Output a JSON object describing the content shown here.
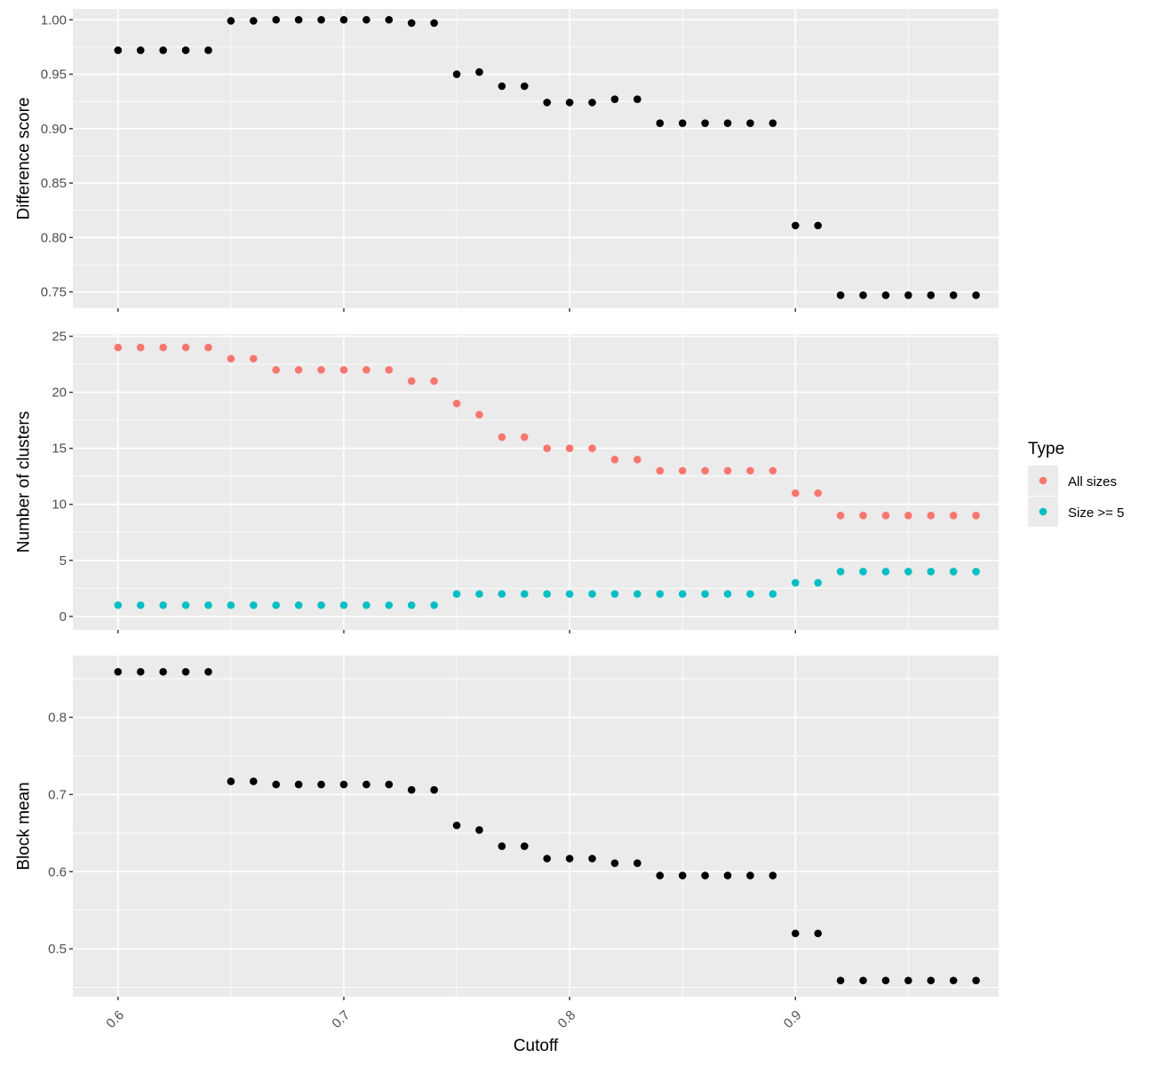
{
  "chart_data": {
    "type": "scatter",
    "x_axis": {
      "label": "Cutoff",
      "range": [
        0.58,
        0.99
      ],
      "ticks": [
        0.6,
        0.7,
        0.8,
        0.9
      ],
      "tick_labels": [
        "0.6",
        "0.7",
        "0.8",
        "0.9"
      ],
      "shared": true
    },
    "x": [
      0.6,
      0.61,
      0.62,
      0.63,
      0.64,
      0.65,
      0.66,
      0.67,
      0.68,
      0.69,
      0.7,
      0.71,
      0.72,
      0.73,
      0.74,
      0.75,
      0.76,
      0.77,
      0.78,
      0.79,
      0.8,
      0.81,
      0.82,
      0.83,
      0.84,
      0.85,
      0.86,
      0.87,
      0.88,
      0.89,
      0.9,
      0.91,
      0.92,
      0.93,
      0.94,
      0.95,
      0.96,
      0.97,
      0.98
    ],
    "grid": true,
    "panels": [
      {
        "ylabel": "Difference score",
        "ylim": [
          0.735,
          1.01
        ],
        "yticks": [
          0.75,
          0.8,
          0.85,
          0.9,
          0.95,
          1.0
        ],
        "ytick_labels": [
          "0.75",
          "0.80",
          "0.85",
          "0.90",
          "0.95",
          "1.00"
        ],
        "series": [
          {
            "color": "#000000",
            "values": [
              0.972,
              0.972,
              0.972,
              0.972,
              0.972,
              0.999,
              0.999,
              1.0,
              1.0,
              1.0,
              1.0,
              1.0,
              1.0,
              0.997,
              0.997,
              0.95,
              0.952,
              0.939,
              0.939,
              0.924,
              0.924,
              0.924,
              0.927,
              0.927,
              0.905,
              0.905,
              0.905,
              0.905,
              0.905,
              0.905,
              0.811,
              0.811,
              0.747,
              0.747,
              0.747,
              0.747,
              0.747,
              0.747,
              0.747
            ]
          }
        ]
      },
      {
        "ylabel": "Number of clusters",
        "ylim": [
          -1.2,
          25.2
        ],
        "yticks": [
          0,
          5,
          10,
          15,
          20,
          25
        ],
        "ytick_labels": [
          "0",
          "5",
          "10",
          "15",
          "20",
          "25"
        ],
        "series": [
          {
            "name": "All sizes",
            "color": "#F8766D",
            "values": [
              24,
              24,
              24,
              24,
              24,
              23,
              23,
              22,
              22,
              22,
              22,
              22,
              22,
              21,
              21,
              19,
              18,
              16,
              16,
              15,
              15,
              15,
              14,
              14,
              13,
              13,
              13,
              13,
              13,
              13,
              11,
              11,
              9,
              9,
              9,
              9,
              9,
              9,
              9
            ]
          },
          {
            "name": "Size >= 5",
            "color": "#00BFC4",
            "values": [
              1,
              1,
              1,
              1,
              1,
              1,
              1,
              1,
              1,
              1,
              1,
              1,
              1,
              1,
              1,
              2,
              2,
              2,
              2,
              2,
              2,
              2,
              2,
              2,
              2,
              2,
              2,
              2,
              2,
              2,
              3,
              3,
              4,
              4,
              4,
              4,
              4,
              4,
              4
            ]
          }
        ]
      },
      {
        "ylabel": "Block mean",
        "ylim": [
          0.438,
          0.88
        ],
        "yticks": [
          0.5,
          0.6,
          0.7,
          0.8
        ],
        "ytick_labels": [
          "0.5",
          "0.6",
          "0.7",
          "0.8"
        ],
        "series": [
          {
            "color": "#000000",
            "values": [
              0.859,
              0.859,
              0.859,
              0.859,
              0.859,
              0.717,
              0.717,
              0.713,
              0.713,
              0.713,
              0.713,
              0.713,
              0.713,
              0.706,
              0.706,
              0.66,
              0.654,
              0.633,
              0.633,
              0.617,
              0.617,
              0.617,
              0.611,
              0.611,
              0.595,
              0.595,
              0.595,
              0.595,
              0.595,
              0.595,
              0.52,
              0.52,
              0.459,
              0.459,
              0.459,
              0.459,
              0.459,
              0.459,
              0.459
            ]
          }
        ]
      }
    ],
    "legend": {
      "title": "Type",
      "placement": "right-middle",
      "entries": [
        {
          "label": "All sizes",
          "color": "#F8766D"
        },
        {
          "label": "Size >= 5",
          "color": "#00BFC4"
        }
      ]
    }
  }
}
